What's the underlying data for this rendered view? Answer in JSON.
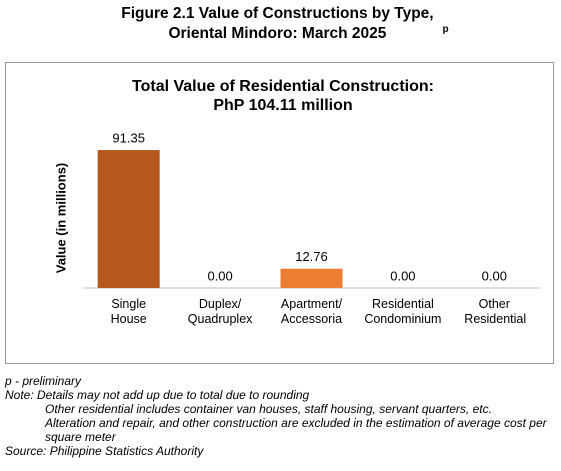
{
  "chart_data": {
    "type": "bar",
    "title": "Figure 2.1 Value of Constructions by Type, Oriental Mindoro: March 2025",
    "title_superscript": "p",
    "subtitle": [
      "Total Value of Residential Construction:",
      "PhP 104.11 million"
    ],
    "y_label": "Value (in millions)",
    "categories": [
      "Single House",
      "Duplex/ Quadruplex",
      "Apartment/ Accessoria",
      "Residential Condominium",
      "Other Residential"
    ],
    "values": [
      91.35,
      0,
      12.76,
      0,
      0
    ],
    "value_labels": [
      "91.35",
      "0.00",
      "12.76",
      "0.00",
      "0.00"
    ],
    "colors": [
      "#b5581f",
      "#b5581f",
      "#ed7d31",
      "#b5581f",
      "#b5581f"
    ],
    "ylim": [
      0,
      100
    ],
    "grid": false
  },
  "notes": [
    "p - preliminary",
    "Note: Details may not add up due to total due to rounding",
    "Other residential includes container van houses, staff housing, servant quarters, etc.",
    "Alteration and repair, and other construction are excluded in the estimation of average cost per square meter",
    "Source: Philippine Statistics Authority"
  ]
}
